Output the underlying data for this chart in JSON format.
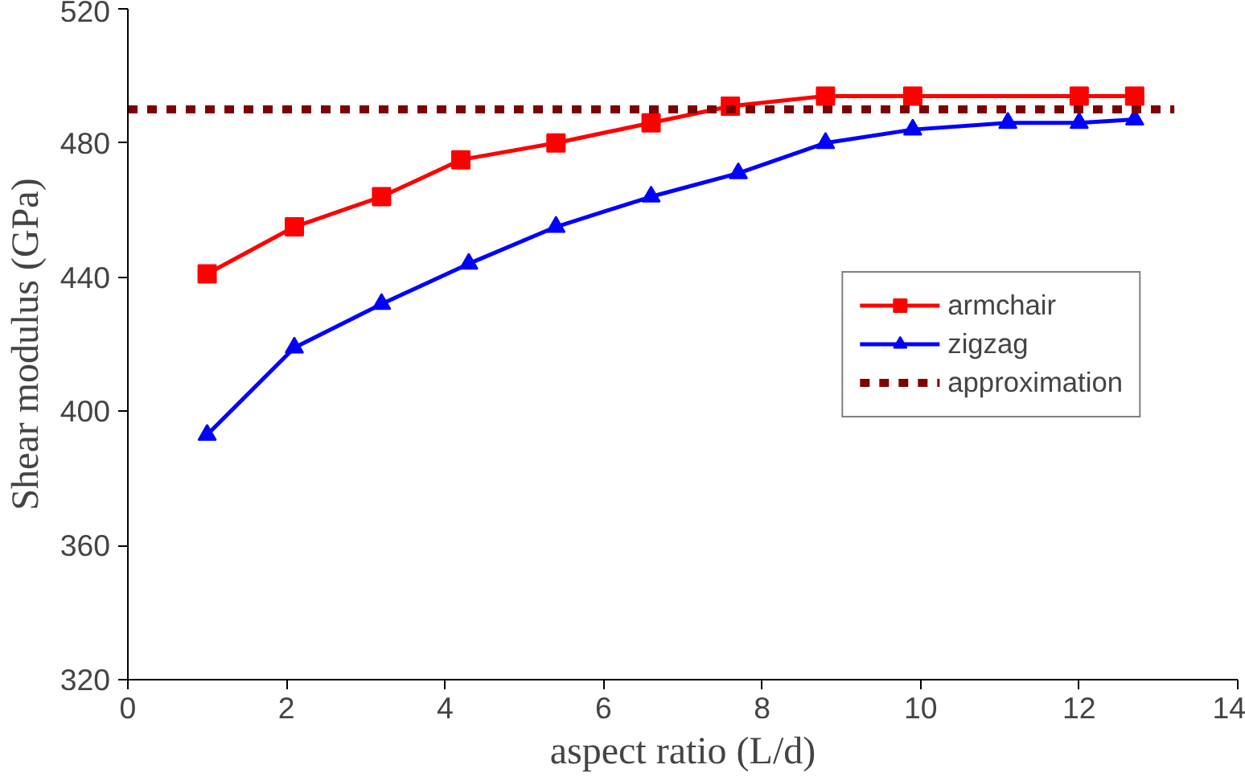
{
  "chart_data": {
    "type": "line",
    "xlabel": "aspect ratio (L/d)",
    "ylabel": "Shear modulus (GPa)",
    "xlim": [
      0,
      14
    ],
    "xticks": [
      0,
      2,
      4,
      6,
      8,
      10,
      12,
      14
    ],
    "ylim": [
      320,
      520
    ],
    "yticks": [
      320,
      360,
      400,
      440,
      480,
      520
    ],
    "grid": false,
    "legend": "right",
    "series": [
      {
        "name": "armchair",
        "color": "#ff0000",
        "marker": "square",
        "x": [
          1,
          2.1,
          3.2,
          4.2,
          5.4,
          6.6,
          7.6,
          8.8,
          9.9,
          12,
          12.7
        ],
        "values": [
          441,
          455,
          464,
          475,
          480,
          486,
          491,
          494,
          494,
          494,
          494
        ]
      },
      {
        "name": "zigzag",
        "color": "#0000ff",
        "marker": "triangle",
        "x": [
          1,
          2.1,
          3.2,
          4.3,
          5.4,
          6.6,
          7.7,
          8.8,
          9.9,
          11.1,
          12,
          12.7
        ],
        "values": [
          393,
          419,
          432,
          444,
          455,
          464,
          471,
          480,
          484,
          486,
          486,
          487
        ]
      },
      {
        "name": "approximation",
        "color": "#800000",
        "marker": "none",
        "line_style": "dashed",
        "x": [
          0,
          13.2
        ],
        "values": [
          490,
          490
        ]
      }
    ]
  }
}
